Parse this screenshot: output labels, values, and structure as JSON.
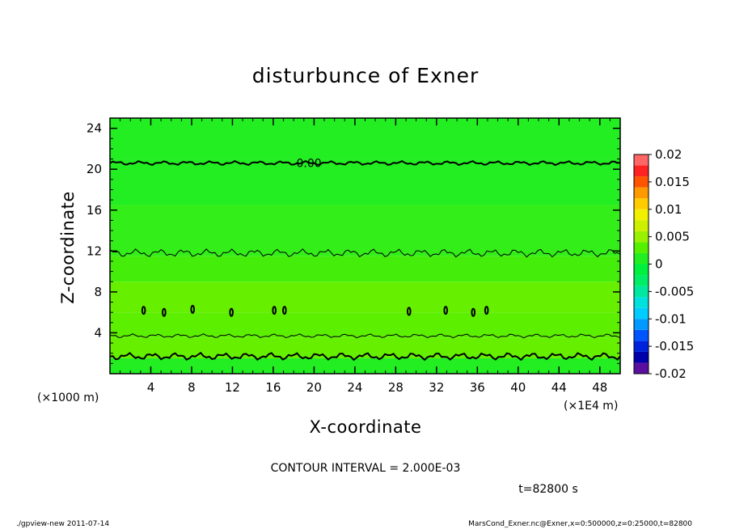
{
  "chart_data": {
    "type": "contour",
    "title": "disturbunce of Exner",
    "xlabel": "X-coordinate",
    "ylabel": "Z-coordinate",
    "x_unit": "(×1E4 m)",
    "y_unit": "(×1000 m)",
    "xlim": [
      0,
      50
    ],
    "ylim": [
      0,
      25
    ],
    "x_ticks": [
      "4",
      "8",
      "12",
      "16",
      "20",
      "24",
      "28",
      "32",
      "36",
      "40",
      "44",
      "48"
    ],
    "y_ticks": [
      "4",
      "8",
      "12",
      "16",
      "20",
      "24"
    ],
    "contour_label": "0.00",
    "colorbar": {
      "labels": [
        "0.02",
        "0.015",
        "0.01",
        "0.005",
        "0",
        "-0.005",
        "-0.01",
        "-0.015",
        "-0.02"
      ],
      "levels": [
        -0.02,
        -0.018,
        -0.016,
        -0.014,
        -0.012,
        -0.01,
        -0.008,
        -0.006,
        -0.004,
        -0.002,
        0,
        0.002,
        0.004,
        0.006,
        0.008,
        0.01,
        0.012,
        0.014,
        0.016,
        0.018,
        0.02
      ],
      "colors": [
        "#5a0fa0",
        "#0000aa",
        "#0022dd",
        "#0055ff",
        "#0099ff",
        "#00ccff",
        "#00e0dd",
        "#00e8a0",
        "#00ee66",
        "#00f040",
        "#22ee22",
        "#55f000",
        "#99f000",
        "#ccf000",
        "#f0f000",
        "#ffcc00",
        "#ff9900",
        "#ff5500",
        "#ff2222",
        "#ff6666",
        "#ff9999"
      ]
    },
    "bands": [
      {
        "z0": 0,
        "z1": 1.5,
        "color": "#22ee22"
      },
      {
        "z0": 1.5,
        "z1": 3.5,
        "color": "#66f000"
      },
      {
        "z0": 3.5,
        "z1": 6,
        "color": "#5cef00"
      },
      {
        "z0": 6,
        "z1": 9,
        "color": "#66f000"
      },
      {
        "z0": 9,
        "z1": 11.5,
        "color": "#44ee0a"
      },
      {
        "z0": 11.5,
        "z1": 16.5,
        "color": "#33ee18"
      },
      {
        "z0": 16.5,
        "z1": 21,
        "color": "#22ee22"
      },
      {
        "z0": 21,
        "z1": 25,
        "color": "#22ee22"
      }
    ],
    "contours": [
      {
        "level": 0,
        "z": 20.6,
        "amp": 0.2,
        "bold": true
      },
      {
        "level": 0.002,
        "z": 11.8,
        "amp": 0.4,
        "bold": false
      },
      {
        "level": 0.002,
        "z": 3.7,
        "amp": 0.2,
        "bold": false
      },
      {
        "level": 0,
        "z": 1.7,
        "amp": 0.35,
        "bold": true
      }
    ],
    "small_contours": [
      {
        "x": 3.3,
        "z": 6.2
      },
      {
        "x": 5.3,
        "z": 6.0
      },
      {
        "x": 8.1,
        "z": 6.3
      },
      {
        "x": 11.9,
        "z": 6.0
      },
      {
        "x": 16.1,
        "z": 6.2
      },
      {
        "x": 17.1,
        "z": 6.2
      },
      {
        "x": 29.3,
        "z": 6.1
      },
      {
        "x": 32.9,
        "z": 6.2
      },
      {
        "x": 35.6,
        "z": 6.0
      },
      {
        "x": 36.9,
        "z": 6.2
      }
    ]
  },
  "footer": {
    "contour_interval": "CONTOUR INTERVAL = 2.000E-03",
    "time": "t=82800 s",
    "left_note": "./gpview-new  2011-07-14",
    "right_note": "MarsCond_Exner.nc@Exner,x=0:500000,z=0:25000,t=82800"
  }
}
